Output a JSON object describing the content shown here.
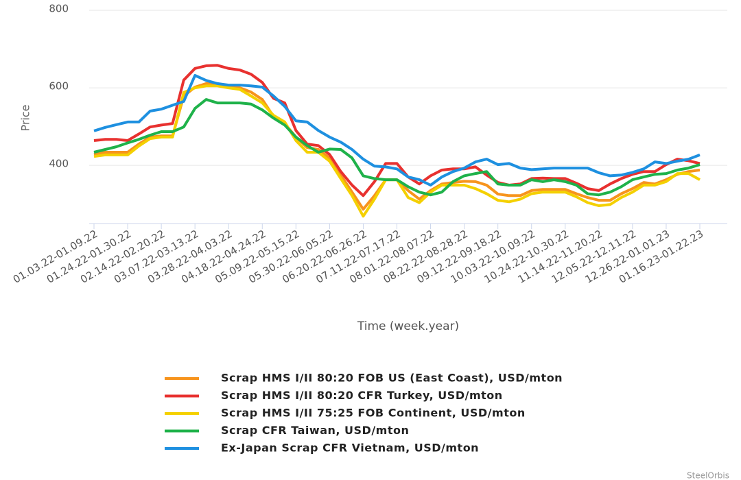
{
  "chart_data": {
    "type": "line",
    "ylabel": "Price",
    "xlabel": "Time (week.year)",
    "watermark": "SteelOrbis",
    "categories": [
      "01.03.22-01.09.22",
      null,
      null,
      "01.24.22-01.30.22",
      null,
      null,
      "02.14.22-02.20.22",
      null,
      null,
      "03.07.22-03.13.22",
      null,
      null,
      "03.28.22-04.03.22",
      null,
      null,
      "04.18.22-04.24.22",
      null,
      null,
      "05.09.22-05.15.22",
      null,
      null,
      "05.30.22-06.05.22",
      null,
      null,
      "06.20.22-06.26.22",
      null,
      null,
      "07.11.22-07.17.22",
      null,
      null,
      "08.01.22-08.07.22",
      null,
      null,
      "08.22.22-08.28.22",
      null,
      null,
      "09.12.22-09.18.22",
      null,
      null,
      "10.03.22-10.09.22",
      null,
      null,
      "10.24.22-10.30.22",
      null,
      null,
      "11.14.22-11.20.22",
      null,
      null,
      "12.05.22-12.11.22",
      null,
      null,
      "12.26.22-01.01.23",
      null,
      null,
      "01.16.23-01.22.23"
    ],
    "ylim": [
      250,
      800
    ],
    "yticks": [
      400,
      600,
      800
    ],
    "grid": true,
    "series": [
      {
        "name": "Scrap HMS I/II 80:20 FOB US (East Coast), USD/mton",
        "color": "#f7941d",
        "values": [
          428,
          434,
          434,
          434,
          455,
          473,
          476,
          476,
          579,
          602,
          611,
          611,
          604,
          600,
          589,
          570,
          526,
          508,
          473,
          446,
          441,
          419,
          375,
          331,
          287,
          322,
          363,
          363,
          335,
          313,
          335,
          352,
          356,
          359,
          358,
          349,
          326,
          322,
          322,
          335,
          338,
          338,
          338,
          327,
          317,
          310,
          310,
          327,
          340,
          356,
          352,
          363,
          377,
          384,
          388
        ]
      },
      {
        "name": "Scrap HMS I/II 80:20 CFR Turkey, USD/mton",
        "color": "#e8312f",
        "values": [
          464,
          467,
          467,
          464,
          481,
          499,
          504,
          508,
          620,
          650,
          657,
          658,
          650,
          646,
          635,
          614,
          573,
          561,
          490,
          455,
          451,
          428,
          384,
          349,
          322,
          358,
          405,
          405,
          370,
          352,
          373,
          388,
          391,
          391,
          396,
          375,
          356,
          349,
          352,
          366,
          367,
          366,
          366,
          354,
          340,
          335,
          352,
          366,
          377,
          384,
          384,
          402,
          416,
          412,
          405
        ]
      },
      {
        "name": "Scrap HMS I/II 75:25 FOB Continent, USD/mton",
        "color": "#f4d000",
        "values": [
          423,
          427,
          427,
          427,
          450,
          469,
          473,
          473,
          588,
          600,
          605,
          605,
          600,
          596,
          579,
          561,
          529,
          512,
          464,
          434,
          434,
          411,
          366,
          322,
          269,
          313,
          363,
          363,
          317,
          304,
          331,
          349,
          349,
          349,
          340,
          327,
          310,
          306,
          313,
          327,
          331,
          331,
          331,
          319,
          304,
          296,
          299,
          317,
          331,
          349,
          349,
          358,
          379,
          379,
          363
        ]
      },
      {
        "name": "Scrap CFR Taiwan, USD/mton",
        "color": "#1fb24a",
        "values": [
          434,
          441,
          448,
          458,
          467,
          478,
          487,
          487,
          499,
          547,
          570,
          561,
          561,
          561,
          558,
          543,
          522,
          504,
          473,
          451,
          434,
          442,
          441,
          419,
          373,
          366,
          363,
          363,
          345,
          331,
          324,
          331,
          358,
          373,
          379,
          384,
          352,
          349,
          349,
          363,
          358,
          363,
          358,
          349,
          327,
          324,
          331,
          345,
          363,
          370,
          377,
          379,
          388,
          393,
          402
        ]
      },
      {
        "name": "Ex-Japan Scrap CFR Vietnam, USD/mton",
        "color": "#1e90e0",
        "values": [
          489,
          498,
          505,
          512,
          512,
          540,
          545,
          555,
          565,
          632,
          619,
          611,
          607,
          607,
          605,
          602,
          579,
          552,
          515,
          512,
          490,
          473,
          460,
          441,
          416,
          398,
          396,
          391,
          370,
          363,
          349,
          370,
          384,
          393,
          409,
          416,
          402,
          405,
          393,
          389,
          391,
          393,
          393,
          393,
          393,
          381,
          373,
          375,
          382,
          391,
          409,
          405,
          411,
          416,
          427
        ]
      }
    ]
  }
}
